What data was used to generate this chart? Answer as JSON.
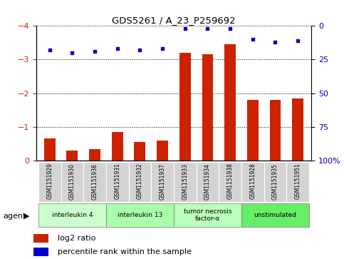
{
  "title": "GDS5261 / A_23_P259692",
  "samples": [
    "GSM1151929",
    "GSM1151930",
    "GSM1151936",
    "GSM1151931",
    "GSM1151932",
    "GSM1151937",
    "GSM1151933",
    "GSM1151934",
    "GSM1151938",
    "GSM1151928",
    "GSM1151935",
    "GSM1151951"
  ],
  "log2_ratio": [
    -0.65,
    -0.3,
    -0.35,
    -0.85,
    -0.55,
    -0.6,
    -3.2,
    -3.15,
    -3.45,
    -1.8,
    -1.8,
    -1.85
  ],
  "percentile_rank": [
    18,
    20,
    19,
    17,
    18,
    17,
    2,
    2,
    2,
    10,
    12,
    11
  ],
  "groups": [
    {
      "label": "interleukin 4",
      "start": 0,
      "end": 3,
      "color": "#ccffcc"
    },
    {
      "label": "interleukin 13",
      "start": 3,
      "end": 6,
      "color": "#aaffaa"
    },
    {
      "label": "tumor necrosis\nfactor-α",
      "start": 6,
      "end": 9,
      "color": "#bbffbb"
    },
    {
      "label": "unstimulated",
      "start": 9,
      "end": 12,
      "color": "#66ee66"
    }
  ],
  "ylim_left": [
    0,
    -4
  ],
  "ylim_right": [
    100,
    0
  ],
  "bar_color": "#cc2200",
  "marker_color": "#0000cc",
  "bar_width": 0.5,
  "background_color": "#ffffff",
  "grid_color": "#000000",
  "tick_label_color_left": "#cc2200",
  "tick_label_color_right": "#0000aa",
  "left_yticks": [
    0,
    -1,
    -2,
    -3,
    -4
  ],
  "right_yticks": [
    100,
    75,
    50,
    25,
    0
  ],
  "right_yticklabels": [
    "100%",
    "75",
    "50",
    "25",
    "0"
  ],
  "agent_label": "agent"
}
